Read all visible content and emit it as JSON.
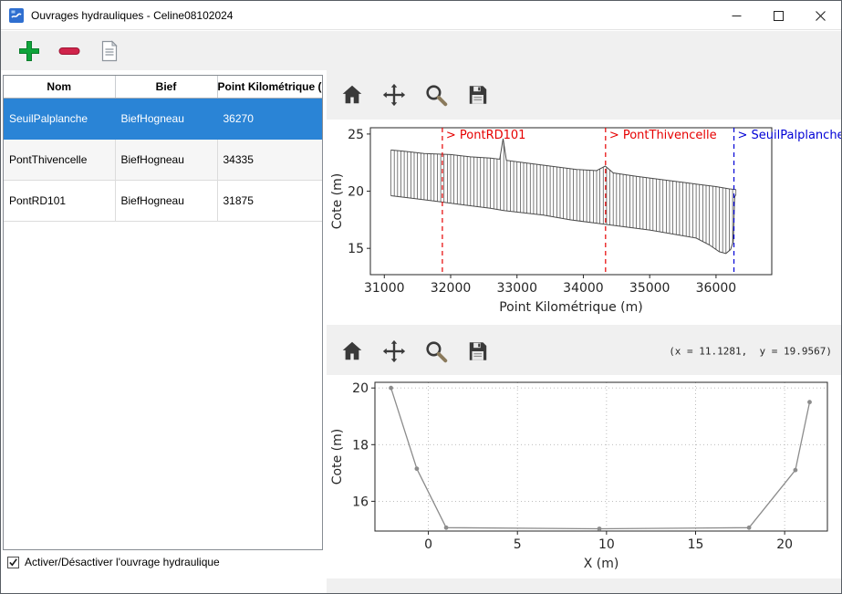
{
  "window": {
    "title": "Ouvrages hydrauliques - Celine08102024"
  },
  "icons": {
    "add": "plus-icon",
    "remove": "minus-icon",
    "edit": "document-icon",
    "home": "home-icon",
    "pan": "pan-arrows-icon",
    "zoom": "magnifier-icon",
    "save": "floppy-icon"
  },
  "table": {
    "columns": [
      "Nom",
      "Bief",
      "Point Kilométrique (m)"
    ],
    "rows": [
      {
        "nom": "SeuilPalplanche",
        "bief": "BiefHogneau",
        "pk": "36270",
        "selected": true
      },
      {
        "nom": "PontThivencelle",
        "bief": "BiefHogneau",
        "pk": "34335",
        "selected": false
      },
      {
        "nom": "PontRD101",
        "bief": "BiefHogneau",
        "pk": "31875",
        "selected": false
      }
    ]
  },
  "checkbox": {
    "label": "Activer/Désactiver l'ouvrage hydraulique",
    "checked": true
  },
  "plots": {
    "coords_readout": "(x = 11.1281,  y = 19.9567)"
  },
  "chart_data": [
    {
      "type": "line",
      "style": "profile-vertical-hatch",
      "xlabel": "Point Kilométrique (m)",
      "ylabel": "Cote (m)",
      "xlim": [
        30790,
        36840
      ],
      "ylim": [
        12.7,
        25.55
      ],
      "xticks": [
        31000,
        32000,
        33000,
        34000,
        35000,
        36000
      ],
      "yticks": [
        15,
        20,
        25
      ],
      "hatch_step": 50,
      "hatch_range": [
        31100,
        36300
      ],
      "series": [
        {
          "name": "top",
          "x": [
            31100,
            31300,
            31600,
            32000,
            32300,
            32600,
            32740,
            32790,
            32840,
            33100,
            33500,
            33900,
            34200,
            34330,
            34450,
            34800,
            35200,
            35600,
            36000,
            36200,
            36300
          ],
          "y": [
            23.6,
            23.5,
            23.3,
            23.2,
            23.0,
            22.9,
            22.8,
            24.6,
            22.7,
            22.5,
            22.2,
            21.9,
            21.8,
            22.2,
            21.6,
            21.3,
            21.0,
            20.7,
            20.4,
            20.2,
            20.15
          ]
        },
        {
          "name": "bottom",
          "x": [
            31100,
            31400,
            31800,
            32200,
            32600,
            32800,
            33100,
            33400,
            33800,
            34200,
            34600,
            35000,
            35400,
            35700,
            35900,
            36050,
            36150,
            36220,
            36260,
            36280,
            36300
          ],
          "y": [
            19.6,
            19.4,
            19.1,
            18.8,
            18.5,
            18.3,
            18.1,
            17.9,
            17.5,
            17.2,
            16.9,
            16.6,
            16.2,
            15.9,
            15.3,
            14.7,
            14.55,
            14.9,
            15.6,
            19.5,
            19.7
          ]
        }
      ],
      "annotations": [
        {
          "x": 31875,
          "label": "> PontRD101",
          "color": "#e60000"
        },
        {
          "x": 34335,
          "label": "> PontThivencelle",
          "color": "#e60000"
        },
        {
          "x": 36270,
          "label": "> SeuilPalplanche",
          "color": "#0000d6"
        }
      ]
    },
    {
      "type": "line",
      "xlabel": "X (m)",
      "ylabel": "Cote (m)",
      "xlim": [
        -3.0,
        22.4
      ],
      "ylim": [
        14.95,
        20.2
      ],
      "xticks": [
        0,
        5,
        10,
        15,
        20
      ],
      "yticks": [
        16,
        18,
        20
      ],
      "grid": true,
      "series": [
        {
          "name": "cross-section",
          "x": [
            -2.1,
            -0.65,
            1.0,
            9.6,
            18.0,
            20.6,
            21.4
          ],
          "y": [
            20.0,
            17.15,
            15.07,
            15.03,
            15.07,
            17.1,
            19.5
          ],
          "marker": true
        }
      ]
    }
  ]
}
